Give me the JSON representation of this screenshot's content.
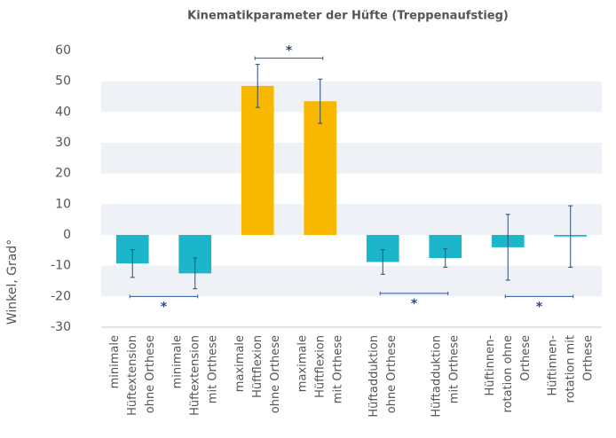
{
  "chart_data": {
    "type": "bar",
    "title": "Kinematikparameter der Hüfte (Treppenaufstieg)",
    "ylabel": "Winkel, Grad°",
    "categories": [
      [
        "minimale",
        "Hüftextension",
        "ohne Orthese"
      ],
      [
        "minimale",
        "Hüftextension",
        "mit Orthese"
      ],
      [
        "maximale",
        "Hüftflexion",
        "ohne Orthese"
      ],
      [
        "maximale",
        "Hüftflexion",
        "mit Orthese"
      ],
      [
        "Hüftadduktion",
        "ohne Orthese"
      ],
      [
        "Hüftadduktion",
        "mit Orthese"
      ],
      [
        "Hüftinnen-",
        "rotation ohne",
        "Orthese"
      ],
      [
        "Hüftinnen-",
        "rotation mit",
        "Orthese"
      ]
    ],
    "values": [
      -9.3,
      -12.5,
      48.5,
      43.5,
      -8.8,
      -7.5,
      -4,
      -0.5
    ],
    "errors": [
      4.5,
      5,
      7,
      7.2,
      4,
      3,
      10.7,
      10
    ],
    "colors": [
      "#1bb6c9",
      "#1bb6c9",
      "#f9b800",
      "#f9b800",
      "#1bb6c9",
      "#1bb6c9",
      "#1bb6c9",
      "#1bb6c9"
    ],
    "ylim": [
      -30,
      60
    ],
    "yticks": [
      -30,
      -20,
      -10,
      0,
      10,
      20,
      30,
      40,
      50,
      60
    ],
    "grid": true,
    "significance": [
      {
        "from": 0,
        "to": 1,
        "y": -20,
        "label": "*"
      },
      {
        "from": 2,
        "to": 3,
        "y": 57.5,
        "label": "*"
      },
      {
        "from": 4,
        "to": 5,
        "y": -19,
        "label": "*"
      },
      {
        "from": 6,
        "to": 7,
        "y": -20,
        "label": "*"
      }
    ]
  }
}
